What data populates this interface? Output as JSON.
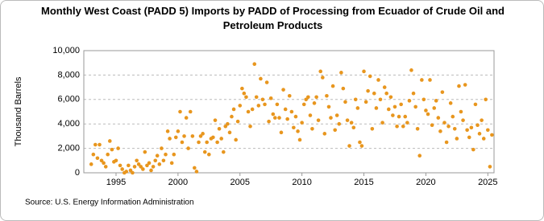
{
  "chart_data": {
    "type": "scatter",
    "title": "Monthly West Coast (PADD 5) Imports by PADD of Processing from Ecuador of Crude Oil and Petroleum Products",
    "ylabel": "Thousand Barrels",
    "source": "Source: U.S. Energy Information Administration",
    "color": "#e8961e",
    "xlim": [
      1992.4,
      2025.5
    ],
    "xticks": [
      1995,
      2000,
      2005,
      2010,
      2015,
      2020,
      2025
    ],
    "ylim": [
      0,
      10000
    ],
    "yticks": [
      0,
      {
        "value": 2000,
        "label": "2,000"
      },
      {
        "value": 4000,
        "label": "4,000"
      },
      {
        "value": 6000,
        "label": "6,000"
      },
      {
        "value": 8000,
        "label": "8,000"
      },
      {
        "value": 10000,
        "label": "10,000"
      }
    ],
    "grid": true,
    "x": [
      1993,
      1993.17,
      1993.33,
      1993.5,
      1993.67,
      1993.83,
      1994,
      1994.17,
      1994.33,
      1994.5,
      1994.67,
      1994.83,
      1995,
      1995.17,
      1995.33,
      1995.5,
      1995.67,
      1995.83,
      1996,
      1996.17,
      1996.33,
      1996.5,
      1996.67,
      1996.83,
      1997,
      1997.17,
      1997.33,
      1997.5,
      1997.67,
      1997.83,
      1998,
      1998.17,
      1998.33,
      1998.5,
      1998.67,
      1998.83,
      1999,
      1999.17,
      1999.33,
      1999.5,
      1999.67,
      1999.83,
      2000,
      2000.17,
      2000.33,
      2000.5,
      2000.67,
      2000.83,
      2001,
      2001.17,
      2001.33,
      2001.5,
      2001.67,
      2001.83,
      2002,
      2002.17,
      2002.33,
      2002.5,
      2002.67,
      2002.83,
      2003,
      2003.17,
      2003.33,
      2003.5,
      2003.67,
      2003.83,
      2004,
      2004.17,
      2004.33,
      2004.5,
      2004.67,
      2004.83,
      2005,
      2005.17,
      2005.33,
      2005.5,
      2005.67,
      2005.83,
      2006,
      2006.17,
      2006.33,
      2006.5,
      2006.67,
      2006.83,
      2007,
      2007.17,
      2007.33,
      2007.5,
      2007.67,
      2007.83,
      2008,
      2008.17,
      2008.33,
      2008.5,
      2008.67,
      2008.83,
      2009,
      2009.17,
      2009.33,
      2009.5,
      2009.67,
      2009.83,
      2010,
      2010.17,
      2010.33,
      2010.5,
      2010.67,
      2010.83,
      2011,
      2011.17,
      2011.33,
      2011.5,
      2011.67,
      2011.83,
      2012,
      2012.17,
      2012.33,
      2012.5,
      2012.67,
      2012.83,
      2013,
      2013.17,
      2013.33,
      2013.5,
      2013.67,
      2013.83,
      2014,
      2014.17,
      2014.33,
      2014.5,
      2014.67,
      2014.83,
      2015,
      2015.17,
      2015.33,
      2015.5,
      2015.67,
      2015.83,
      2016,
      2016.17,
      2016.33,
      2016.5,
      2016.67,
      2016.83,
      2017,
      2017.17,
      2017.33,
      2017.5,
      2017.67,
      2017.83,
      2018,
      2018.17,
      2018.33,
      2018.5,
      2018.67,
      2018.83,
      2019,
      2019.17,
      2019.33,
      2019.5,
      2019.67,
      2019.83,
      2020,
      2020.17,
      2020.33,
      2020.5,
      2020.67,
      2020.83,
      2021,
      2021.17,
      2021.33,
      2021.5,
      2021.67,
      2021.83,
      2022,
      2022.17,
      2022.33,
      2022.5,
      2022.67,
      2022.83,
      2023,
      2023.17,
      2023.33,
      2023.5,
      2023.67,
      2023.83,
      2024,
      2024.17,
      2024.33,
      2024.5,
      2024.67,
      2024.83,
      2025,
      2025.17,
      2025.33
    ],
    "values": [
      700,
      1500,
      2300,
      1200,
      2300,
      1000,
      800,
      500,
      1500,
      2600,
      1900,
      900,
      1000,
      2000,
      600,
      300,
      0,
      100,
      600,
      200,
      0,
      500,
      1000,
      700,
      500,
      300,
      1700,
      600,
      800,
      200,
      500,
      1000,
      1400,
      700,
      2000,
      1000,
      1500,
      3400,
      2800,
      800,
      1500,
      2900,
      3400,
      5000,
      2500,
      3000,
      4500,
      2000,
      5000,
      3000,
      400,
      100,
      2500,
      3000,
      3200,
      1700,
      2500,
      1500,
      2800,
      2900,
      4300,
      2500,
      3600,
      2800,
      1700,
      3800,
      4000,
      3300,
      4600,
      5200,
      2700,
      4200,
      5500,
      6900,
      6500,
      6200,
      5000,
      3800,
      5200,
      8900,
      6200,
      5500,
      7700,
      6000,
      5600,
      7400,
      4200,
      6100,
      4800,
      4500,
      5600,
      4500,
      3300,
      6800,
      5200,
      4400,
      6300,
      5000,
      3700,
      4600,
      3400,
      2700,
      4100,
      5600,
      6000,
      6200,
      4700,
      3600,
      5700,
      6200,
      4300,
      8300,
      7800,
      3200,
      6300,
      5400,
      4500,
      7100,
      3500,
      4700,
      4000,
      8200,
      6900,
      5800,
      4300,
      2200,
      4100,
      3700,
      6000,
      5300,
      2500,
      2200,
      8300,
      5800,
      6700,
      7900,
      3600,
      6500,
      5300,
      7600,
      6000,
      4100,
      7000,
      6500,
      5200,
      6200,
      4700,
      5400,
      3800,
      4600,
      5600,
      3800,
      4600,
      4100,
      5900,
      8400,
      6500,
      5400,
      3600,
      1400,
      7600,
      6000,
      5100,
      4800,
      7600,
      3900,
      5300,
      5900,
      4500,
      3400,
      6600,
      4100,
      2500,
      3800,
      5700,
      4600,
      3600,
      2800,
      7100,
      5000,
      4300,
      7200,
      3500,
      2900,
      3700,
      1900,
      5600,
      3900,
      3200,
      4300,
      2800,
      6000,
      3500,
      500,
      3100
    ]
  }
}
